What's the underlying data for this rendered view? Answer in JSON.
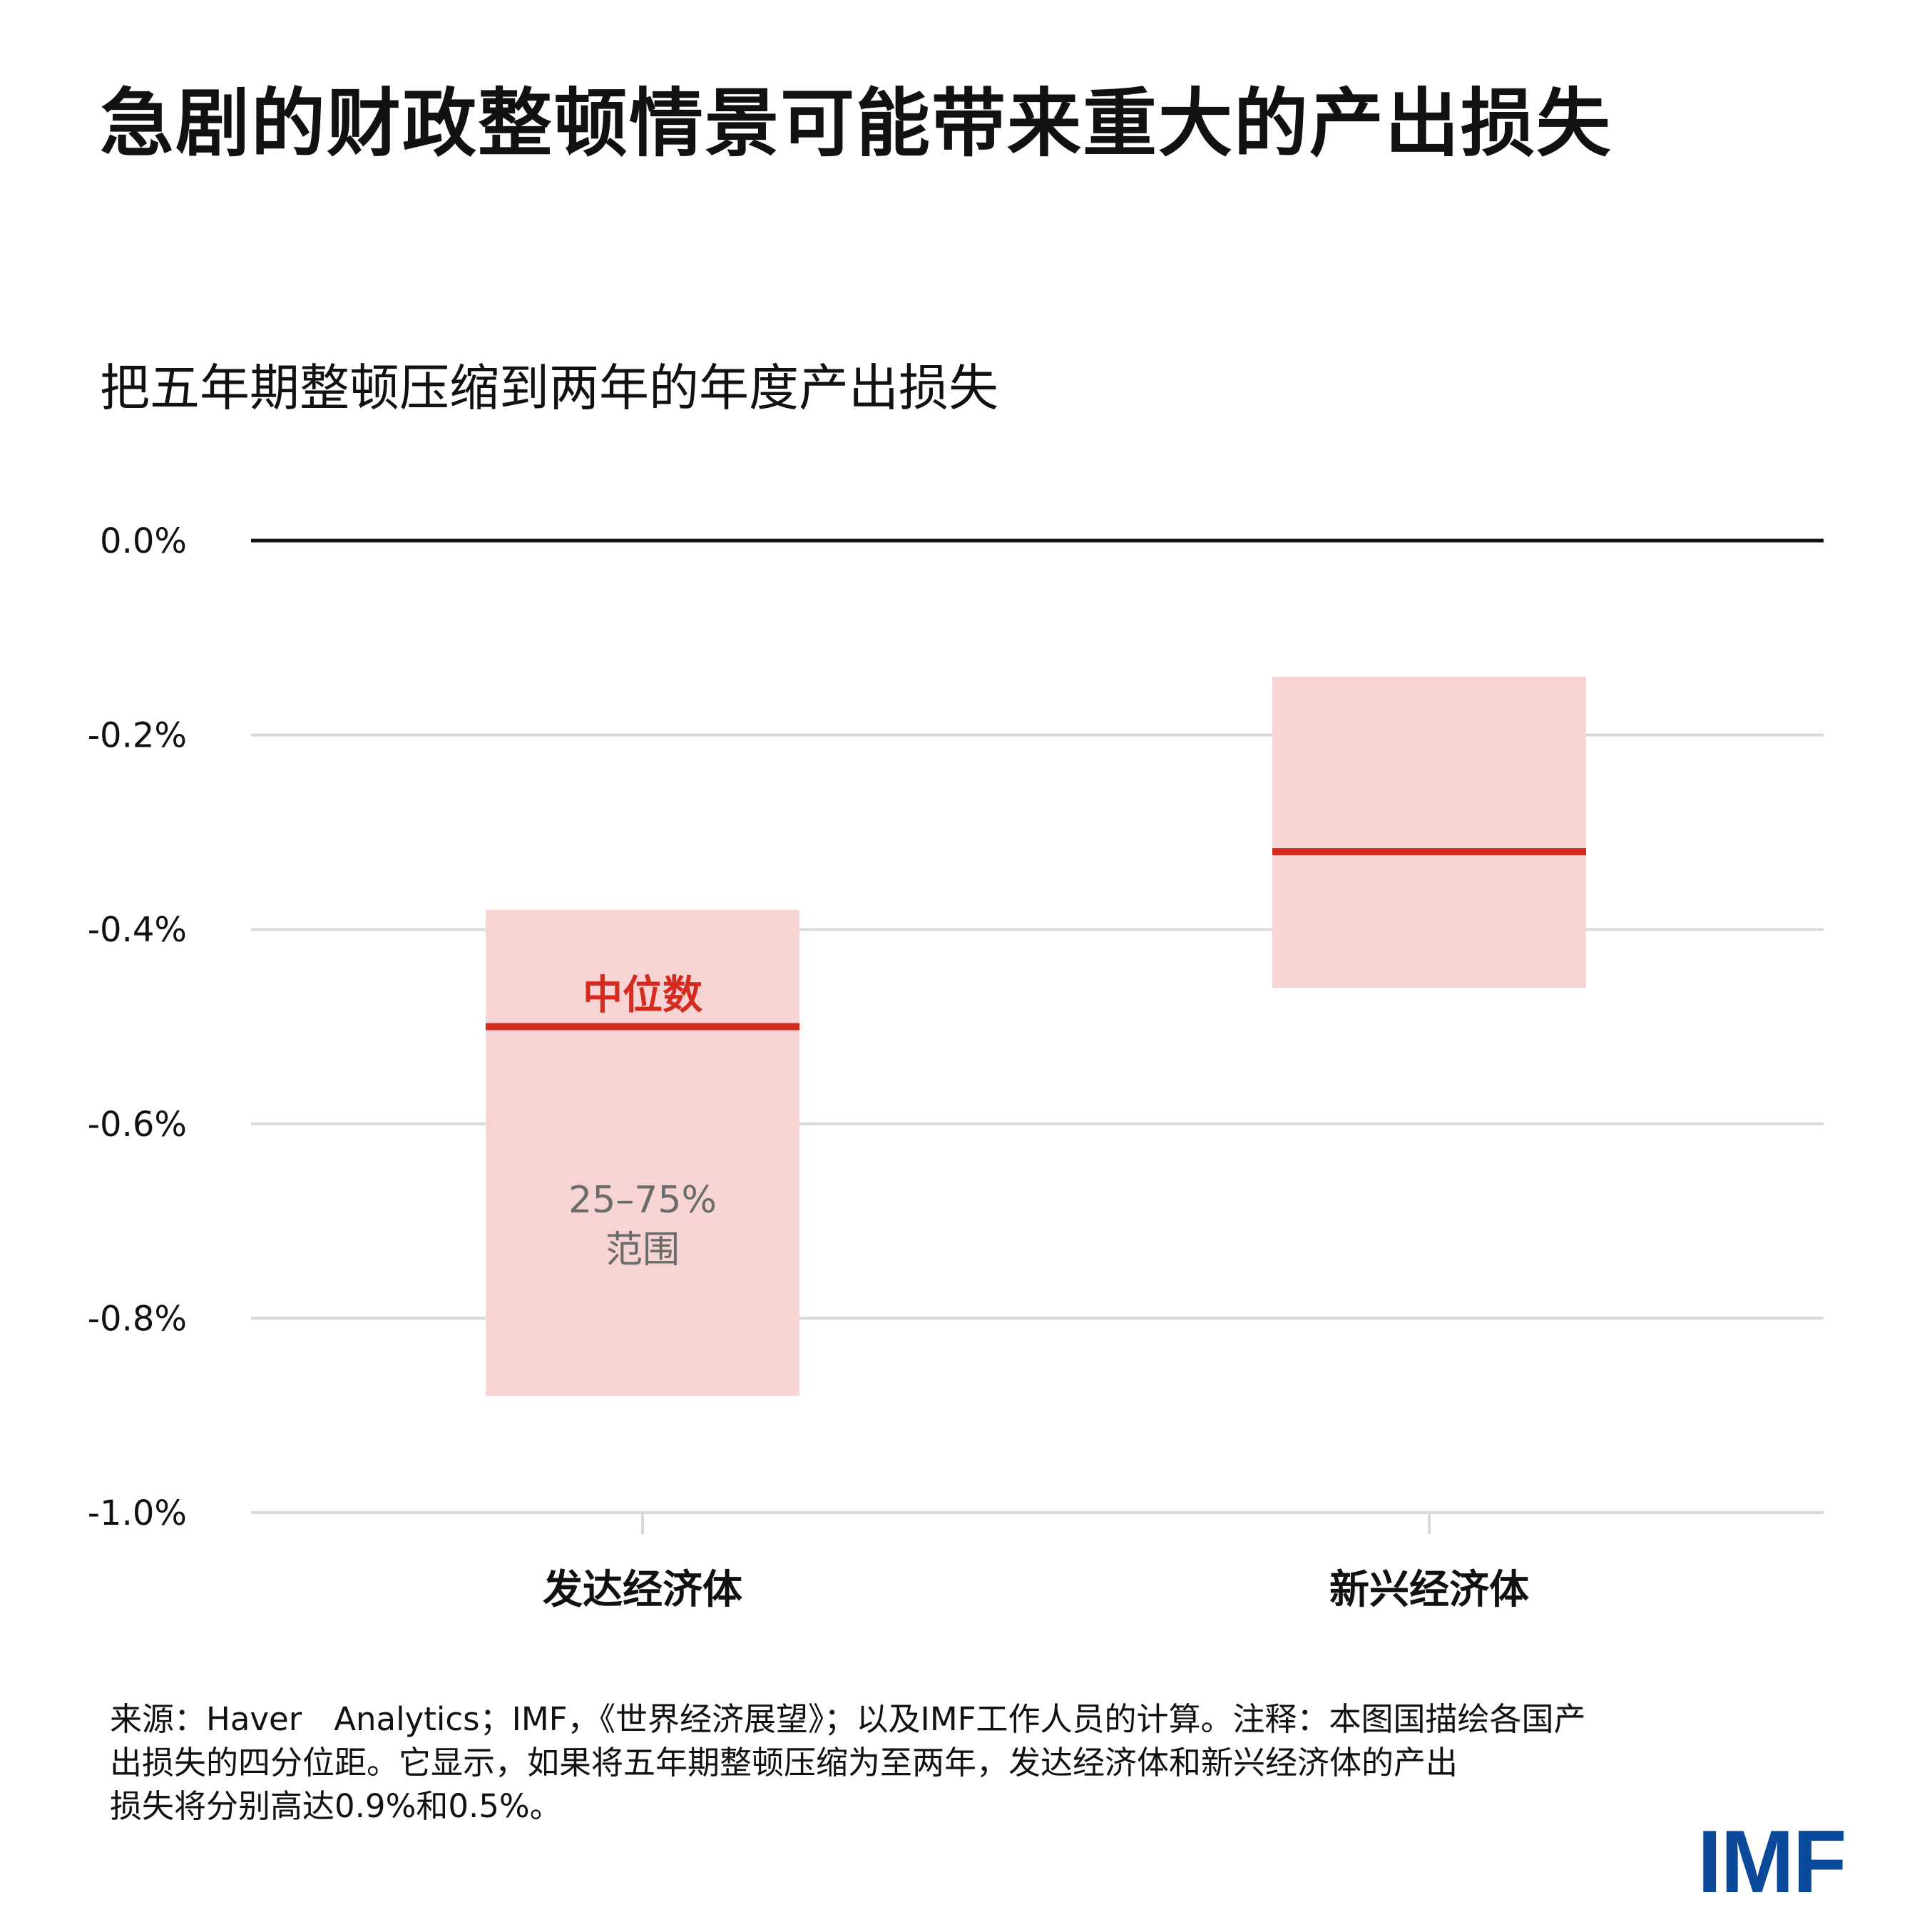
{
  "title": "急剧的财政整顿情景可能带来重大的产出损失",
  "subtitle": "把五年期整顿压缩到两年的年度产出损失",
  "chart_data": {
    "type": "floating-bar",
    "categories": [
      "发达经济体",
      "新兴经济体"
    ],
    "series": [
      {
        "name": "25–75%范围",
        "low": [
          -0.88,
          -0.46
        ],
        "high": [
          -0.38,
          -0.14
        ]
      },
      {
        "name": "中位数",
        "values": [
          -0.5,
          -0.32
        ]
      }
    ],
    "ylim": [
      -1.0,
      0.0
    ],
    "yticks": [
      0.0,
      -0.2,
      -0.4,
      -0.6,
      -0.8,
      -1.0
    ],
    "ytick_labels": [
      "0.0%",
      "-0.2%",
      "-0.4%",
      "-0.6%",
      "-0.8%",
      "-1.0%"
    ],
    "annotations": {
      "median": "中位数",
      "range_line1": "25–75%",
      "range_line2": "范围"
    },
    "grid": true,
    "colors": {
      "range": "#f7d4d4",
      "median": "#d42a20",
      "grid": "#d9d9d9",
      "zero_line": "#111111",
      "annotation_text": "#6b6b6b"
    }
  },
  "footnote": [
    "来源：Haver　Analytics；IMF，《世界经济展望》；以及IMF工作人员的计算。注释：本图国描绘各国产",
    "出损失的四分位距。它显示，如果将五年期整顿压缩为至两年，发达经济体和新兴经济体的产出",
    "损失将分别高达0.9%和0.5%。"
  ],
  "logo": {
    "text": "IMF",
    "color": "#0b4a9b"
  }
}
